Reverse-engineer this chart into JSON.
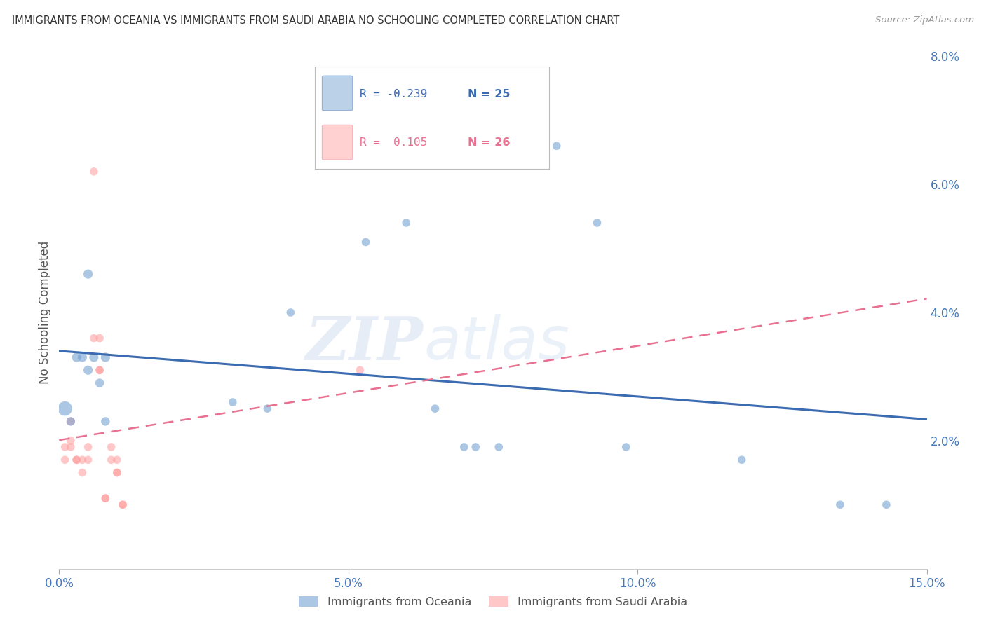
{
  "title": "IMMIGRANTS FROM OCEANIA VS IMMIGRANTS FROM SAUDI ARABIA NO SCHOOLING COMPLETED CORRELATION CHART",
  "source": "Source: ZipAtlas.com",
  "ylabel": "No Schooling Completed",
  "xlim": [
    0.0,
    0.15
  ],
  "ylim": [
    0.0,
    0.08
  ],
  "xticks": [
    0.0,
    0.05,
    0.1,
    0.15
  ],
  "yticks": [
    0.0,
    0.02,
    0.04,
    0.06,
    0.08
  ],
  "xtick_labels": [
    "0.0%",
    "5.0%",
    "10.0%",
    "15.0%"
  ],
  "ytick_labels": [
    "",
    "2.0%",
    "4.0%",
    "6.0%",
    "8.0%"
  ],
  "blue_color": "#6699CC",
  "pink_color": "#FF9999",
  "blue_line_color": "#3B6BB0",
  "pink_line_color": "#E87090",
  "blue_R": -0.239,
  "blue_N": 25,
  "pink_R": 0.105,
  "pink_N": 26,
  "legend_label_blue": "Immigrants from Oceania",
  "legend_label_pink": "Immigrants from Saudi Arabia",
  "blue_points": [
    [
      0.001,
      0.025
    ],
    [
      0.002,
      0.023
    ],
    [
      0.003,
      0.033
    ],
    [
      0.004,
      0.033
    ],
    [
      0.005,
      0.031
    ],
    [
      0.005,
      0.046
    ],
    [
      0.006,
      0.033
    ],
    [
      0.007,
      0.029
    ],
    [
      0.008,
      0.033
    ],
    [
      0.008,
      0.023
    ],
    [
      0.03,
      0.026
    ],
    [
      0.036,
      0.025
    ],
    [
      0.04,
      0.04
    ],
    [
      0.053,
      0.051
    ],
    [
      0.06,
      0.054
    ],
    [
      0.065,
      0.025
    ],
    [
      0.07,
      0.019
    ],
    [
      0.072,
      0.019
    ],
    [
      0.076,
      0.019
    ],
    [
      0.086,
      0.066
    ],
    [
      0.093,
      0.054
    ],
    [
      0.098,
      0.019
    ],
    [
      0.118,
      0.017
    ],
    [
      0.135,
      0.01
    ],
    [
      0.143,
      0.01
    ]
  ],
  "blue_sizes": [
    220,
    80,
    90,
    90,
    90,
    90,
    90,
    80,
    90,
    80,
    70,
    70,
    70,
    70,
    70,
    70,
    70,
    70,
    70,
    70,
    70,
    70,
    70,
    70,
    70
  ],
  "pink_points": [
    [
      0.001,
      0.019
    ],
    [
      0.001,
      0.017
    ],
    [
      0.002,
      0.023
    ],
    [
      0.002,
      0.02
    ],
    [
      0.002,
      0.019
    ],
    [
      0.003,
      0.017
    ],
    [
      0.003,
      0.017
    ],
    [
      0.004,
      0.017
    ],
    [
      0.004,
      0.015
    ],
    [
      0.005,
      0.019
    ],
    [
      0.005,
      0.017
    ],
    [
      0.006,
      0.062
    ],
    [
      0.006,
      0.036
    ],
    [
      0.007,
      0.036
    ],
    [
      0.007,
      0.031
    ],
    [
      0.007,
      0.031
    ],
    [
      0.008,
      0.011
    ],
    [
      0.008,
      0.011
    ],
    [
      0.009,
      0.019
    ],
    [
      0.009,
      0.017
    ],
    [
      0.01,
      0.017
    ],
    [
      0.01,
      0.015
    ],
    [
      0.01,
      0.015
    ],
    [
      0.011,
      0.01
    ],
    [
      0.011,
      0.01
    ],
    [
      0.052,
      0.031
    ]
  ],
  "pink_sizes": [
    70,
    70,
    70,
    70,
    70,
    70,
    70,
    70,
    70,
    70,
    70,
    70,
    70,
    70,
    70,
    70,
    70,
    70,
    70,
    70,
    70,
    70,
    70,
    70,
    70,
    70
  ],
  "watermark_zip": "ZIP",
  "watermark_atlas": "atlas",
  "background_color": "#FFFFFF",
  "grid_color": "#DDDDDD"
}
